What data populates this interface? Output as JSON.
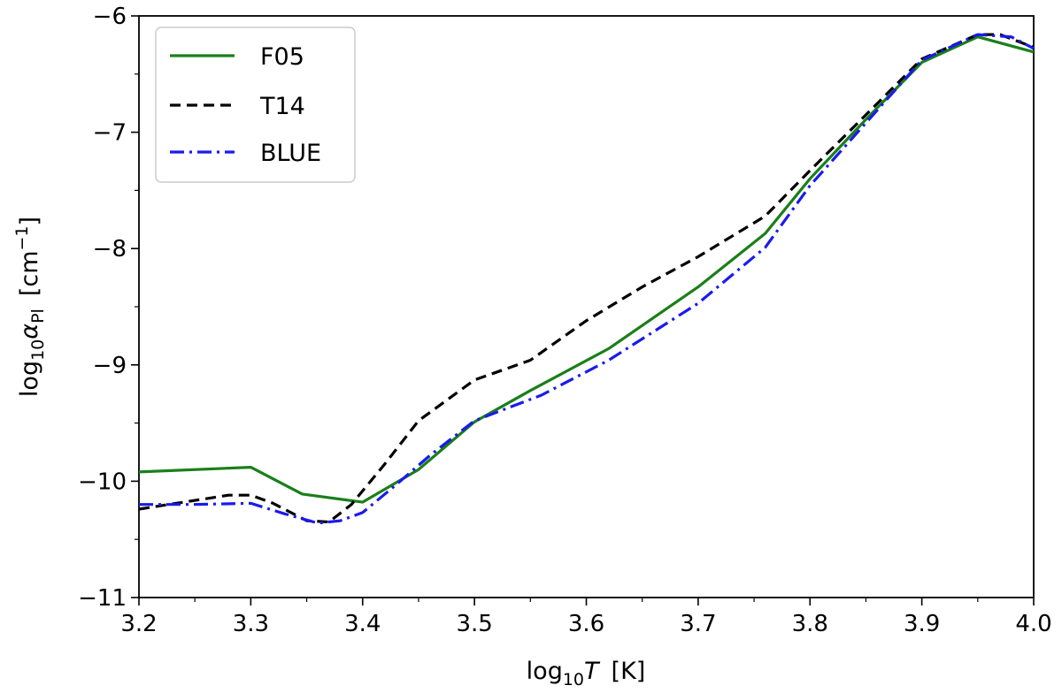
{
  "chart_data": {
    "type": "line",
    "xlabel": {
      "prefix": "log",
      "sub": "10",
      "var": "T",
      "unit": "[K]"
    },
    "ylabel": {
      "prefix": "log",
      "sub": "10",
      "var": "α",
      "varsub": "Pl",
      "unit": "[cm",
      "unitsup": "−1",
      "unitend": "]"
    },
    "xlim": [
      3.2,
      4.0
    ],
    "ylim": [
      -11,
      -6
    ],
    "x_ticks": [
      "3.2",
      "3.3",
      "3.4",
      "3.5",
      "3.6",
      "3.7",
      "3.8",
      "3.9",
      "4.0"
    ],
    "y_ticks": [
      "−11",
      "−10",
      "−9",
      "−8",
      "−7",
      "−6"
    ],
    "x_tick_values": [
      3.2,
      3.3,
      3.4,
      3.5,
      3.6,
      3.7,
      3.8,
      3.9,
      4.0
    ],
    "y_tick_values": [
      -11,
      -10,
      -9,
      -8,
      -7,
      -6
    ],
    "grid": false,
    "legend_position": "top-left",
    "series": [
      {
        "name": "F05",
        "color": "#1a7f1a",
        "dash": "solid",
        "x": [
          3.2,
          3.3,
          3.346,
          3.4,
          3.45,
          3.5,
          3.55,
          3.62,
          3.7,
          3.76,
          3.8,
          3.85,
          3.9,
          3.95,
          4.0
        ],
        "y": [
          -9.92,
          -9.88,
          -10.11,
          -10.18,
          -9.9,
          -9.49,
          -9.22,
          -8.86,
          -8.33,
          -7.87,
          -7.4,
          -6.89,
          -6.4,
          -6.18,
          -6.31
        ]
      },
      {
        "name": "T14",
        "color": "#000000",
        "dash": "dashed",
        "x": [
          3.2,
          3.24,
          3.28,
          3.3,
          3.32,
          3.35,
          3.37,
          3.39,
          3.42,
          3.45,
          3.5,
          3.55,
          3.6,
          3.65,
          3.7,
          3.76,
          3.8,
          3.85,
          3.9,
          3.95,
          3.97,
          4.0
        ],
        "y": [
          -10.24,
          -10.18,
          -10.12,
          -10.12,
          -10.19,
          -10.34,
          -10.35,
          -10.2,
          -9.85,
          -9.48,
          -9.13,
          -8.96,
          -8.62,
          -8.33,
          -8.07,
          -7.72,
          -7.33,
          -6.85,
          -6.37,
          -6.16,
          -6.16,
          -6.27
        ]
      },
      {
        "name": "BLUE",
        "color": "#1a1aee",
        "dash": "dashdot",
        "x": [
          3.2,
          3.25,
          3.3,
          3.33,
          3.36,
          3.38,
          3.4,
          3.43,
          3.46,
          3.5,
          3.56,
          3.62,
          3.7,
          3.76,
          3.8,
          3.85,
          3.9,
          3.95,
          3.98,
          4.0
        ],
        "y": [
          -10.2,
          -10.2,
          -10.19,
          -10.28,
          -10.36,
          -10.34,
          -10.27,
          -10.03,
          -9.78,
          -9.48,
          -9.26,
          -8.96,
          -8.47,
          -7.99,
          -7.46,
          -6.92,
          -6.38,
          -6.16,
          -6.18,
          -6.28
        ]
      }
    ]
  }
}
